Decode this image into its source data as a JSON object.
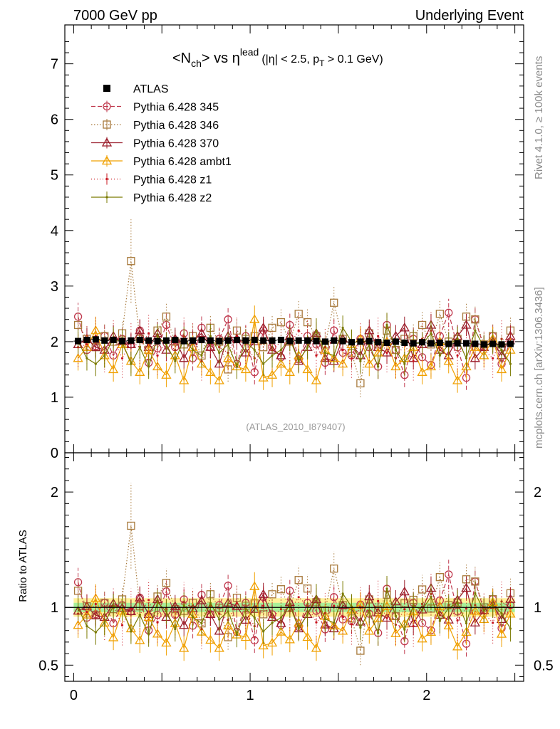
{
  "header": {
    "left": "7000 GeV pp",
    "right": "Underlying Event"
  },
  "side_text": {
    "rivet": "Rivet 4.1.0, ≥ 100k events",
    "mcplots": "mcplots.cern.ch [arXiv:1306.3436]"
  },
  "chart_data": {
    "type": "line",
    "title": {
      "part1": "<N",
      "sub1": "ch",
      "part2": "> vs η",
      "sup1": "lead",
      "cut1": "(|η| < 2.5, p",
      "sub2": "T",
      "cut2": " > 0.1 GeV)"
    },
    "watermark": "(ATLAS_2010_I879407)",
    "ratio_ylabel": "Ratio to ATLAS",
    "main_ylim": [
      0,
      7.7
    ],
    "main_yticks": [
      "0",
      "1",
      "2",
      "3",
      "4",
      "5",
      "6",
      "7"
    ],
    "ratio_ylim": [
      0.36,
      2.34
    ],
    "ratio_yticks": [
      "0.5",
      "1",
      "2"
    ],
    "xlim": [
      -0.05,
      2.55
    ],
    "xticks": [
      "0",
      "1",
      "2"
    ],
    "x_bins": {
      "start": 0.025,
      "step": 0.05,
      "count": 50
    },
    "reference": {
      "name": "ATLAS",
      "values": [
        2.01,
        2.03,
        2.04,
        2.02,
        2.03,
        2.01,
        2.02,
        2.03,
        2.02,
        2.01,
        2.02,
        2.03,
        2.01,
        2.02,
        2.03,
        2.02,
        2.01,
        2.02,
        2.03,
        2.02,
        2.03,
        2.02,
        2.02,
        2.03,
        2.01,
        2.02,
        2.02,
        2.01,
        2.0,
        2.02,
        2.01,
        1.99,
        2.0,
        2.01,
        1.99,
        1.98,
        2.0,
        1.98,
        1.97,
        1.99,
        1.97,
        1.98,
        1.96,
        1.97,
        1.97,
        1.96,
        1.95,
        1.96,
        1.95,
        1.96
      ],
      "errors": [
        0.04,
        0.04,
        0.04,
        0.04,
        0.04,
        0.04,
        0.04,
        0.04,
        0.04,
        0.04,
        0.04,
        0.04,
        0.04,
        0.04,
        0.04,
        0.04,
        0.04,
        0.04,
        0.04,
        0.04,
        0.04,
        0.04,
        0.04,
        0.04,
        0.04,
        0.04,
        0.04,
        0.04,
        0.04,
        0.04,
        0.04,
        0.04,
        0.04,
        0.04,
        0.04,
        0.04,
        0.04,
        0.04,
        0.04,
        0.04,
        0.04,
        0.04,
        0.04,
        0.04,
        0.04,
        0.04,
        0.04,
        0.04,
        0.04,
        0.04
      ]
    },
    "band": {
      "inner": 0.04,
      "outer": 0.08
    },
    "series": [
      {
        "name": "Pythia 6.428 345",
        "color": "#c0394e",
        "dash": "6,3",
        "marker": "circle",
        "values": [
          2.45,
          1.85,
          1.92,
          2.1,
          1.75,
          2.05,
          1.95,
          2.2,
          1.62,
          1.88,
          2.3,
          1.9,
          2.15,
          1.7,
          2.25,
          1.9,
          2.05,
          2.4,
          1.6,
          2.1,
          1.45,
          2.2,
          1.9,
          1.72,
          2.3,
          1.68,
          2.1,
          1.95,
          1.62,
          2.2,
          1.8,
          1.75,
          2.05,
          1.9,
          1.55,
          2.3,
          1.85,
          1.4,
          2.05,
          1.72,
          1.58,
          2.1,
          2.52,
          1.9,
          1.35,
          2.4,
          1.9,
          2.1,
          1.6,
          2.0
        ],
        "errors": [
          0.25,
          0.2,
          0.2,
          0.22,
          0.22,
          0.2,
          0.2,
          0.22,
          0.22,
          0.2,
          0.22,
          0.2,
          0.22,
          0.22,
          0.22,
          0.2,
          0.2,
          0.22,
          0.22,
          0.2,
          0.22,
          0.22,
          0.2,
          0.22,
          0.22,
          0.22,
          0.2,
          0.2,
          0.22,
          0.22,
          0.2,
          0.22,
          0.22,
          0.2,
          0.22,
          0.22,
          0.2,
          0.22,
          0.22,
          0.2,
          0.22,
          0.22,
          0.25,
          0.2,
          0.22,
          0.22,
          0.2,
          0.22,
          0.22,
          0.2
        ]
      },
      {
        "name": "Pythia 6.428 346",
        "color": "#a87a3c",
        "dash": "1.5,2.5",
        "marker": "square",
        "values": [
          2.3,
          2.05,
          1.9,
          2.1,
          2.0,
          2.15,
          3.45,
          2.05,
          1.85,
          2.2,
          2.45,
          2.0,
          1.95,
          2.1,
          1.75,
          2.25,
          2.0,
          1.5,
          2.2,
          2.05,
          2.1,
          1.9,
          2.25,
          2.35,
          2.0,
          2.5,
          2.35,
          2.1,
          1.95,
          2.7,
          2.05,
          1.8,
          1.25,
          2.15,
          1.95,
          2.2,
          1.85,
          2.05,
          2.1,
          2.3,
          1.95,
          2.5,
          2.0,
          2.05,
          2.45,
          2.4,
          1.95,
          2.1,
          1.9,
          2.2
        ],
        "errors": [
          0.25,
          0.22,
          0.22,
          0.22,
          0.22,
          0.22,
          0.75,
          0.22,
          0.22,
          0.22,
          0.25,
          0.22,
          0.22,
          0.22,
          0.22,
          0.22,
          0.22,
          0.22,
          0.22,
          0.22,
          0.22,
          0.22,
          0.22,
          0.25,
          0.22,
          0.25,
          0.25,
          0.22,
          0.22,
          0.3,
          0.22,
          0.22,
          0.25,
          0.22,
          0.22,
          0.22,
          0.22,
          0.22,
          0.22,
          0.25,
          0.22,
          0.25,
          0.22,
          0.22,
          0.25,
          0.25,
          0.22,
          0.22,
          0.22,
          0.25
        ]
      },
      {
        "name": "Pythia 6.428 370",
        "color": "#9a1c2a",
        "dash": "none",
        "marker": "triangle",
        "values": [
          1.95,
          2.05,
          1.9,
          1.85,
          2.1,
          2.0,
          1.95,
          2.2,
          1.9,
          2.15,
          1.85,
          2.05,
          1.7,
          2.0,
          2.15,
          1.9,
          1.6,
          2.1,
          2.05,
          1.8,
          2.0,
          2.25,
          1.85,
          1.75,
          2.1,
          1.65,
          1.9,
          2.15,
          1.7,
          1.65,
          2.05,
          1.95,
          1.75,
          2.2,
          1.9,
          1.8,
          2.1,
          2.25,
          1.7,
          1.95,
          2.3,
          1.85,
          1.75,
          2.1,
          2.3,
          1.7,
          1.9,
          2.0,
          1.75,
          2.1
        ],
        "errors": [
          0.2,
          0.2,
          0.2,
          0.2,
          0.2,
          0.2,
          0.2,
          0.2,
          0.2,
          0.2,
          0.2,
          0.2,
          0.2,
          0.2,
          0.2,
          0.2,
          0.2,
          0.2,
          0.2,
          0.2,
          0.2,
          0.2,
          0.2,
          0.2,
          0.2,
          0.2,
          0.2,
          0.2,
          0.2,
          0.2,
          0.2,
          0.2,
          0.2,
          0.2,
          0.2,
          0.2,
          0.2,
          0.2,
          0.2,
          0.2,
          0.2,
          0.2,
          0.2,
          0.2,
          0.2,
          0.2,
          0.2,
          0.2,
          0.2,
          0.2
        ]
      },
      {
        "name": "Pythia 6.428 ambt1",
        "color": "#f0a000",
        "dash": "none",
        "marker": "triangle",
        "values": [
          1.7,
          1.9,
          2.2,
          1.75,
          1.5,
          1.95,
          1.65,
          1.45,
          1.85,
          1.55,
          1.4,
          1.75,
          1.3,
          1.9,
          1.6,
          1.45,
          1.3,
          1.7,
          1.55,
          1.5,
          2.4,
          1.35,
          1.4,
          1.6,
          1.45,
          1.75,
          1.5,
          1.3,
          1.85,
          1.7,
          1.6,
          1.95,
          2.05,
          1.6,
          1.8,
          2.0,
          1.55,
          1.7,
          1.9,
          1.45,
          1.55,
          2.0,
          1.65,
          1.3,
          1.55,
          1.9,
          1.75,
          2.05,
          1.5,
          1.85
        ],
        "errors": [
          0.22,
          0.22,
          0.25,
          0.22,
          0.22,
          0.22,
          0.22,
          0.22,
          0.22,
          0.22,
          0.22,
          0.22,
          0.22,
          0.22,
          0.22,
          0.22,
          0.22,
          0.22,
          0.22,
          0.22,
          0.25,
          0.22,
          0.22,
          0.22,
          0.22,
          0.22,
          0.22,
          0.22,
          0.22,
          0.22,
          0.22,
          0.22,
          0.22,
          0.22,
          0.22,
          0.22,
          0.22,
          0.22,
          0.22,
          0.22,
          0.22,
          0.22,
          0.22,
          0.22,
          0.22,
          0.22,
          0.22,
          0.22,
          0.22,
          0.22
        ]
      },
      {
        "name": "Pythia 6.428 z1",
        "color": "#c8141e",
        "dash": "1,3",
        "marker": "dot",
        "values": [
          1.9,
          1.95,
          2.1,
          1.8,
          2.05,
          1.7,
          2.0,
          1.9,
          2.15,
          1.75,
          2.0,
          1.85,
          2.1,
          2.0,
          1.65,
          2.05,
          1.9,
          1.8,
          2.1,
          1.95,
          1.7,
          2.05,
          1.85,
          2.0,
          1.95,
          2.2,
          2.05,
          1.75,
          1.9,
          2.05,
          1.85,
          1.7,
          2.0,
          1.95,
          2.1,
          1.8,
          1.7,
          1.95,
          1.65,
          2.05,
          2.2,
          1.85,
          2.0,
          1.75,
          1.95,
          2.0,
          1.85,
          1.7,
          2.05,
          1.95
        ],
        "errors": [
          0.35,
          0.35,
          0.35,
          0.35,
          0.35,
          0.35,
          0.35,
          0.35,
          0.35,
          0.35,
          0.35,
          0.35,
          0.35,
          0.35,
          0.35,
          0.35,
          0.35,
          0.35,
          0.35,
          0.35,
          0.35,
          0.35,
          0.35,
          0.35,
          0.35,
          0.35,
          0.35,
          0.35,
          0.35,
          0.35,
          0.35,
          0.35,
          0.35,
          0.35,
          0.35,
          0.35,
          0.35,
          0.35,
          0.35,
          0.35,
          0.35,
          0.35,
          0.35,
          0.35,
          0.35,
          0.35,
          0.35,
          0.35,
          0.35,
          0.35
        ]
      },
      {
        "name": "Pythia 6.428 z2",
        "color": "#7a7a00",
        "dash": "none",
        "marker": "dot",
        "values": [
          2.0,
          1.7,
          1.6,
          1.75,
          2.05,
          2.0,
          1.6,
          1.9,
          1.55,
          2.1,
          1.95,
          1.65,
          2.05,
          1.85,
          1.75,
          2.1,
          1.8,
          1.95,
          1.55,
          2.0,
          1.85,
          1.6,
          1.75,
          1.85,
          2.05,
          1.65,
          1.9,
          2.2,
          1.8,
          1.75,
          2.25,
          2.0,
          1.65,
          1.95,
          1.55,
          2.3,
          1.85,
          1.6,
          2.0,
          1.95,
          2.15,
          1.75,
          1.95,
          2.05,
          1.7,
          2.2,
          1.9,
          2.0,
          1.85,
          1.6
        ],
        "errors": [
          0.22,
          0.22,
          0.22,
          0.22,
          0.22,
          0.22,
          0.22,
          0.22,
          0.22,
          0.22,
          0.22,
          0.22,
          0.22,
          0.22,
          0.22,
          0.22,
          0.22,
          0.22,
          0.22,
          0.22,
          0.22,
          0.22,
          0.22,
          0.22,
          0.22,
          0.22,
          0.22,
          0.22,
          0.22,
          0.22,
          0.22,
          0.22,
          0.22,
          0.22,
          0.22,
          0.22,
          0.22,
          0.22,
          0.22,
          0.22,
          0.22,
          0.22,
          0.22,
          0.22,
          0.22,
          0.22,
          0.22,
          0.22,
          0.22,
          0.22
        ]
      }
    ]
  }
}
